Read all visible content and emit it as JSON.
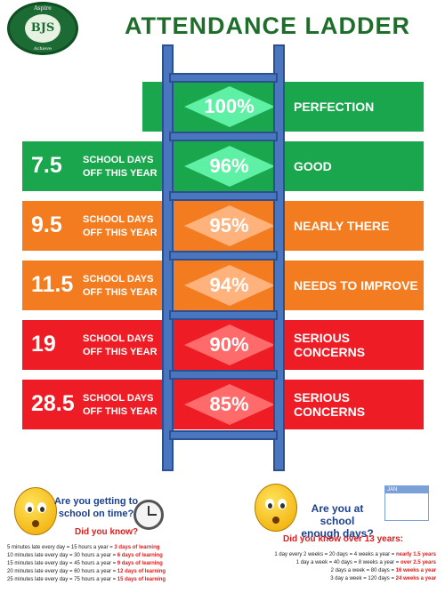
{
  "header": {
    "title": "ATTENDANCE LADDER",
    "logo_text": "BJS",
    "logo_motto_top": "Aspire",
    "logo_motto_side": "Achieve"
  },
  "rows": [
    {
      "days": "",
      "off_line1": "",
      "off_line2": "",
      "percent": "100%",
      "status": "PERFECTION",
      "color": "#1aa64d",
      "diamond": "#5ef0a4"
    },
    {
      "days": "7.5",
      "off_line1": "SCHOOL DAYS",
      "off_line2": "OFF THIS YEAR",
      "percent": "96%",
      "status": "GOOD",
      "color": "#1aa64d",
      "diamond": "#5ef0a4"
    },
    {
      "days": "9.5",
      "off_line1": "SCHOOL DAYS",
      "off_line2": "OFF THIS YEAR",
      "percent": "95%",
      "status": "NEARLY THERE",
      "color": "#f47c20",
      "diamond": "#ffb27c"
    },
    {
      "days": "11.5",
      "off_line1": "SCHOOL DAYS",
      "off_line2": "OFF THIS YEAR",
      "percent": "94%",
      "status": "NEEDS TO IMPROVE",
      "color": "#f47c20",
      "diamond": "#ffb27c"
    },
    {
      "days": "19",
      "off_line1": "SCHOOL DAYS",
      "off_line2": "OFF THIS YEAR",
      "percent": "90%",
      "status": "SERIOUS CONCERNS",
      "color": "#ee1c24",
      "diamond": "#ff6b6b"
    },
    {
      "days": "28.5",
      "off_line1": "SCHOOL DAYS",
      "off_line2": "OFF THIS YEAR",
      "percent": "85%",
      "status": "SERIOUS CONCERNS",
      "color": "#ee1c24",
      "diamond": "#ff6b6b"
    }
  ],
  "left_panel": {
    "title_line1": "Are you getting to",
    "title_line2": "school on time?",
    "subtitle": "Did you know?",
    "facts": [
      {
        "text": "5 minutes late every day = 15 hours a year = ",
        "highlight": "3 days of learning"
      },
      {
        "text": "10 minutes late every day = 30 hours a year = ",
        "highlight": "6 days of learning"
      },
      {
        "text": "15 minutes late every day = 45 hours a year = ",
        "highlight": "9 days of learning"
      },
      {
        "text": "20 minutes late every day = 60 hours a year = ",
        "highlight": "12 days of learning"
      },
      {
        "text": "25 minutes late every day = 75 hours a year = ",
        "highlight": "15 days of learning"
      }
    ]
  },
  "right_panel": {
    "title_line1": "Are you at school",
    "title_line2": "enough days?",
    "calendar_label": "JAN",
    "subtitle": "Did you know over 13 years:",
    "facts": [
      {
        "text": "1 day every 2 weeks = 20 days = 4 weeks a year = ",
        "highlight": "nearly 1.5 years"
      },
      {
        "text": "1 day a week = 40 days = 8 weeks a year = ",
        "highlight": "over 2.5 years"
      },
      {
        "text": "2 days a week = 80 days = ",
        "highlight": "16 weeks a year"
      },
      {
        "text": "3 day a week = 120 days = ",
        "highlight": "24 weeks a year"
      }
    ]
  }
}
